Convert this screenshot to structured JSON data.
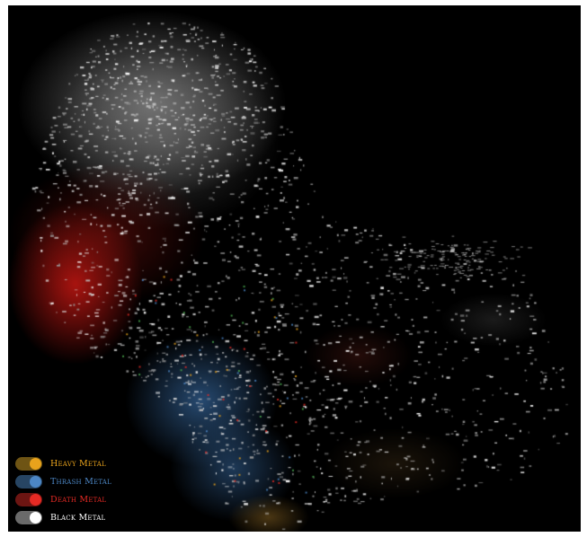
{
  "legend": {
    "items": [
      {
        "label": "Heavy Metal",
        "color": "#e8a21c",
        "track": "#6e5414",
        "enabled": true
      },
      {
        "label": "Thrash Metal",
        "color": "#4c86c4",
        "track": "#274563",
        "enabled": true
      },
      {
        "label": "Death Metal",
        "color": "#e62a24",
        "track": "#6c1512",
        "enabled": true
      },
      {
        "label": "Black Metal",
        "color": "#ffffff",
        "track": "#6a6a6a",
        "enabled": true
      }
    ]
  },
  "map": {
    "background": "#000000",
    "marker_color": "#d8d8d8"
  }
}
